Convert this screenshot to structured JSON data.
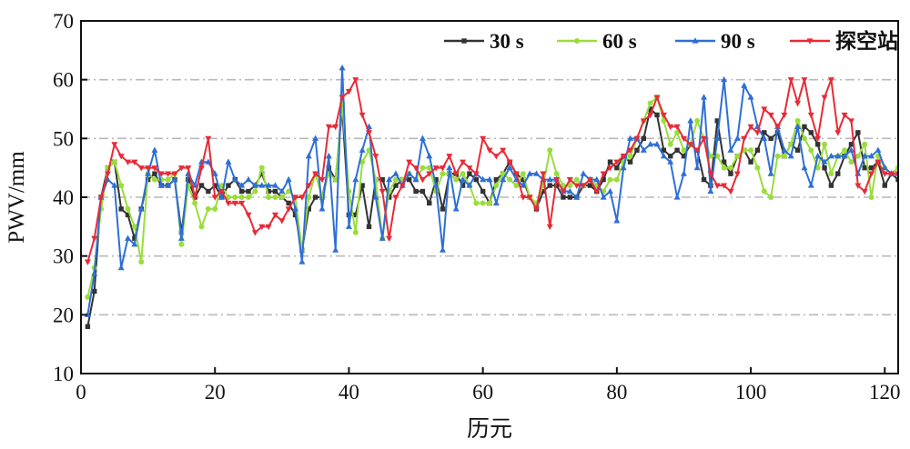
{
  "chart_data": {
    "type": "line",
    "xlabel": "历元",
    "ylabel": "PWV/mm",
    "xlim": [
      0,
      122
    ],
    "ylim": [
      10,
      70
    ],
    "xticks": [
      0,
      20,
      40,
      60,
      80,
      100,
      120
    ],
    "yticks": [
      10,
      20,
      30,
      40,
      50,
      60,
      70
    ],
    "grid": "horizontal dash-dot at 20, 30, 40, 50, 60",
    "legend_position": "top-right",
    "series": [
      {
        "name": "30 s",
        "color": "#333333",
        "marker": "square",
        "values": [
          18,
          24,
          40,
          45,
          46,
          38,
          37,
          33,
          38,
          43,
          44,
          42,
          42,
          43,
          34,
          43,
          40,
          42,
          41,
          42,
          40,
          42,
          43,
          41,
          41,
          42,
          44,
          41,
          41,
          40,
          39,
          37,
          31,
          38,
          40,
          40,
          45,
          43,
          55,
          37,
          37,
          42,
          35,
          43,
          43,
          40,
          42,
          43,
          43,
          41,
          41,
          39,
          43,
          38,
          44,
          44,
          42,
          44,
          43,
          41,
          39,
          43,
          44,
          46,
          44,
          43,
          40,
          38,
          41,
          42,
          42,
          40,
          40,
          40,
          42,
          42,
          41,
          43,
          46,
          45,
          47,
          46,
          48,
          50,
          55,
          54,
          48,
          47,
          48,
          47,
          49,
          48,
          43,
          42,
          53,
          46,
          44,
          47,
          48,
          46,
          48,
          51,
          50,
          51,
          47,
          49,
          48,
          52,
          51,
          49,
          45,
          42,
          44,
          47,
          49,
          51,
          45,
          45,
          46,
          42,
          44,
          43
        ]
      },
      {
        "name": "60 s",
        "color": "#9ADD3C",
        "marker": "circle",
        "values": [
          23,
          28,
          38,
          45,
          46,
          42,
          38,
          35,
          29,
          44,
          43,
          43,
          43,
          44,
          32,
          42,
          39,
          35,
          38,
          38,
          42,
          40,
          40,
          40,
          40,
          41,
          45,
          40,
          40,
          40,
          41,
          40,
          31,
          40,
          44,
          40,
          44,
          43,
          56,
          41,
          34,
          46,
          48,
          43,
          33,
          41,
          43,
          43,
          44,
          43,
          45,
          45,
          41,
          44,
          44,
          43,
          44,
          42,
          39,
          39,
          39,
          42,
          44,
          43,
          42,
          44,
          40,
          39,
          42,
          48,
          44,
          42,
          42,
          43,
          42,
          43,
          42,
          41,
          43,
          43,
          46,
          47,
          50,
          53,
          56,
          57,
          53,
          49,
          51,
          48,
          49,
          53,
          50,
          47,
          47,
          45,
          45,
          47,
          48,
          48,
          45,
          41,
          40,
          47,
          47,
          49,
          53,
          50,
          48,
          45,
          49,
          44,
          47,
          48,
          46,
          47,
          49,
          40,
          47,
          45,
          44,
          45
        ]
      },
      {
        "name": "90 s",
        "color": "#2E6FD6",
        "marker": "triangle-up",
        "values": [
          20,
          27,
          40,
          43,
          42,
          28,
          33,
          32,
          38,
          44,
          48,
          42,
          42,
          43,
          33,
          44,
          42,
          46,
          46,
          44,
          40,
          46,
          43,
          42,
          43,
          42,
          42,
          42,
          42,
          41,
          43,
          38,
          29,
          47,
          50,
          38,
          47,
          31,
          62,
          35,
          43,
          48,
          52,
          40,
          33,
          43,
          44,
          42,
          44,
          43,
          50,
          47,
          42,
          31,
          45,
          38,
          43,
          42,
          44,
          43,
          43,
          39,
          43,
          45,
          43,
          42,
          44,
          44,
          43,
          43,
          43,
          41,
          41,
          40,
          44,
          43,
          43,
          40,
          41,
          36,
          45,
          50,
          50,
          48,
          49,
          49,
          47,
          46,
          40,
          44,
          53,
          45,
          57,
          41,
          50,
          60,
          48,
          50,
          59,
          57,
          52,
          50,
          44,
          52,
          48,
          47,
          52,
          45,
          42,
          47,
          46,
          47,
          47,
          47,
          48,
          44,
          47,
          47,
          48,
          45,
          44,
          44
        ]
      },
      {
        "name": "探空站",
        "color": "#E82A37",
        "marker": "triangle-down",
        "values": [
          29,
          33,
          40,
          44,
          49,
          47,
          46,
          46,
          45,
          45,
          45,
          44,
          44,
          44,
          45,
          45,
          40,
          45,
          50,
          40,
          41,
          39,
          39,
          39,
          37,
          34,
          35,
          35,
          37,
          36,
          38,
          40,
          40,
          42,
          44,
          43,
          52,
          52,
          57,
          58,
          60,
          54,
          51,
          47,
          41,
          33,
          40,
          42,
          46,
          45,
          43,
          44,
          45,
          45,
          47,
          44,
          46,
          45,
          44,
          50,
          48,
          47,
          48,
          46,
          44,
          40,
          40,
          38,
          44,
          35,
          43,
          41,
          43,
          42,
          42,
          43,
          41,
          44,
          45,
          46,
          47,
          48,
          50,
          53,
          54,
          57,
          54,
          52,
          52,
          50,
          49,
          48,
          50,
          44,
          42,
          42,
          41,
          44,
          50,
          52,
          51,
          55,
          54,
          52,
          54,
          60,
          56,
          60,
          54,
          50,
          57,
          60,
          51,
          54,
          53,
          42,
          41,
          44,
          46,
          44,
          44,
          44
        ]
      }
    ]
  }
}
